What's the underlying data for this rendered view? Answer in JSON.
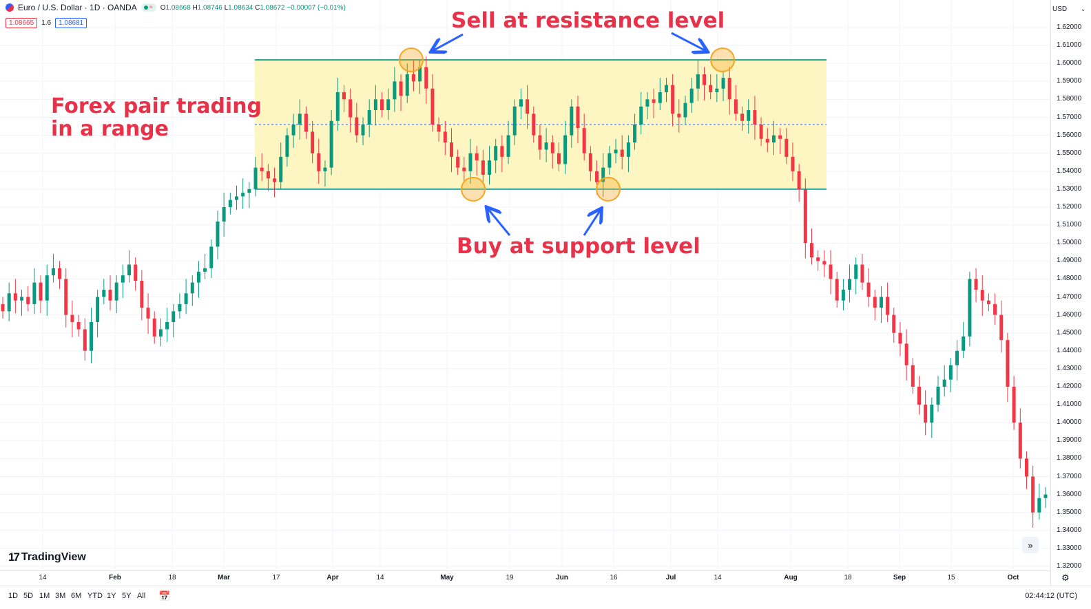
{
  "header": {
    "symbol_title": "Euro / U.S. Dollar · 1D · OANDA",
    "open": "1.08668",
    "high": "1.08746",
    "low": "1.08634",
    "close": "1.08672",
    "change": "−0.00007 (−0.01%)",
    "bid": "1.08665",
    "spread": "1.6",
    "ask": "1.08681"
  },
  "price_axis": {
    "currency": "USD",
    "ticks": [
      "1.62000",
      "1.61000",
      "1.60000",
      "1.59000",
      "1.58000",
      "1.57000",
      "1.56000",
      "1.55000",
      "1.54000",
      "1.53000",
      "1.52000",
      "1.51000",
      "1.50000",
      "1.49000",
      "1.48000",
      "1.47000",
      "1.46000",
      "1.45000",
      "1.44000",
      "1.43000",
      "1.42000",
      "1.41000",
      "1.40000",
      "1.39000",
      "1.38000",
      "1.37000",
      "1.36000",
      "1.35000",
      "1.34000",
      "1.33000",
      "1.32000"
    ]
  },
  "time_axis": {
    "labels": [
      "14",
      "Feb",
      "18",
      "Mar",
      "17",
      "Apr",
      "14",
      "May",
      "19",
      "Jun",
      "16",
      "Jul",
      "14",
      "Aug",
      "18",
      "Sep",
      "15",
      "Oct"
    ]
  },
  "annotations": {
    "range_text": [
      "Forex pair trading",
      "in a range"
    ],
    "sell_text": "Sell at resistance level",
    "buy_text": "Buy at support level"
  },
  "bottom_bar": {
    "ranges": [
      "1D",
      "5D",
      "1M",
      "3M",
      "6M",
      "YTD",
      "1Y",
      "5Y",
      "All"
    ],
    "clock": "02:44:12 (UTC)"
  },
  "branding": {
    "logo_text": "TradingView"
  },
  "colors": {
    "up": "#089981",
    "down": "#f23645",
    "range_fill": "#fdf6c3",
    "range_line": "#26a69a",
    "circle": "#f5a623",
    "arrow": "#2962ff",
    "annotation": "#e8324a"
  },
  "chart_data": {
    "type": "candlestick",
    "ylim": [
      1.32,
      1.625
    ],
    "resistance": 1.602,
    "support": 1.53,
    "midline": 1.566,
    "series_close": [
      1.462,
      1.472,
      1.468,
      1.47,
      1.466,
      1.478,
      1.468,
      1.482,
      1.486,
      1.48,
      1.46,
      1.456,
      1.452,
      1.44,
      1.456,
      1.47,
      1.474,
      1.468,
      1.478,
      1.482,
      1.488,
      1.479,
      1.464,
      1.458,
      1.448,
      1.452,
      1.456,
      1.462,
      1.466,
      1.472,
      1.478,
      1.484,
      1.486,
      1.498,
      1.512,
      1.52,
      1.524,
      1.526,
      1.528,
      1.53,
      1.542,
      1.54,
      1.536,
      1.534,
      1.548,
      1.56,
      1.566,
      1.572,
      1.562,
      1.55,
      1.54,
      1.542,
      1.568,
      1.584,
      1.58,
      1.57,
      1.56,
      1.566,
      1.574,
      1.58,
      1.574,
      1.58,
      1.59,
      1.582,
      1.594,
      1.59,
      1.598,
      1.586,
      1.566,
      1.562,
      1.556,
      1.548,
      1.542,
      1.54,
      1.55,
      1.546,
      1.538,
      1.546,
      1.554,
      1.548,
      1.56,
      1.576,
      1.58,
      1.572,
      1.56,
      1.552,
      1.556,
      1.55,
      1.544,
      1.56,
      1.576,
      1.564,
      1.55,
      1.54,
      1.534,
      1.542,
      1.55,
      1.552,
      1.548,
      1.556,
      1.566,
      1.576,
      1.58,
      1.578,
      1.584,
      1.588,
      1.572,
      1.57,
      1.578,
      1.586,
      1.594,
      1.588,
      1.584,
      1.586,
      1.592,
      1.58,
      1.572,
      1.568,
      1.574,
      1.566,
      1.558,
      1.556,
      1.56,
      1.558,
      1.548,
      1.54,
      1.53,
      1.5,
      1.492,
      1.49,
      1.488,
      1.48,
      1.468,
      1.474,
      1.48,
      1.488,
      1.478,
      1.47,
      1.464,
      1.47,
      1.46,
      1.45,
      1.444,
      1.432,
      1.42,
      1.41,
      1.4,
      1.41,
      1.42,
      1.424,
      1.432,
      1.44,
      1.448,
      1.48,
      1.474,
      1.468,
      1.466,
      1.46,
      1.446,
      1.42,
      1.4,
      1.38,
      1.37,
      1.35,
      1.358,
      1.36
    ]
  }
}
